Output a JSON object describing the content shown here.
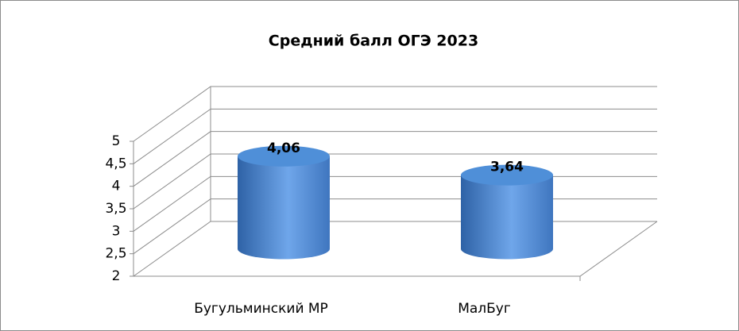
{
  "chart_data": {
    "type": "bar",
    "title": "Средний балл ОГЭ 2023",
    "categories": [
      "Бугульминский МР",
      "МалБуг"
    ],
    "values": [
      4.06,
      3.64
    ],
    "value_labels": [
      "4,06",
      "3,64"
    ],
    "color": "#4f8fd8",
    "ylim": [
      2,
      5
    ],
    "yticks": [
      2,
      {
        "value": 2.5,
        "label": "2,5"
      },
      3,
      {
        "value": 3.5,
        "label": "3,5"
      },
      4,
      {
        "value": 4.5,
        "label": "4,5"
      },
      5
    ],
    "grid": true
  }
}
